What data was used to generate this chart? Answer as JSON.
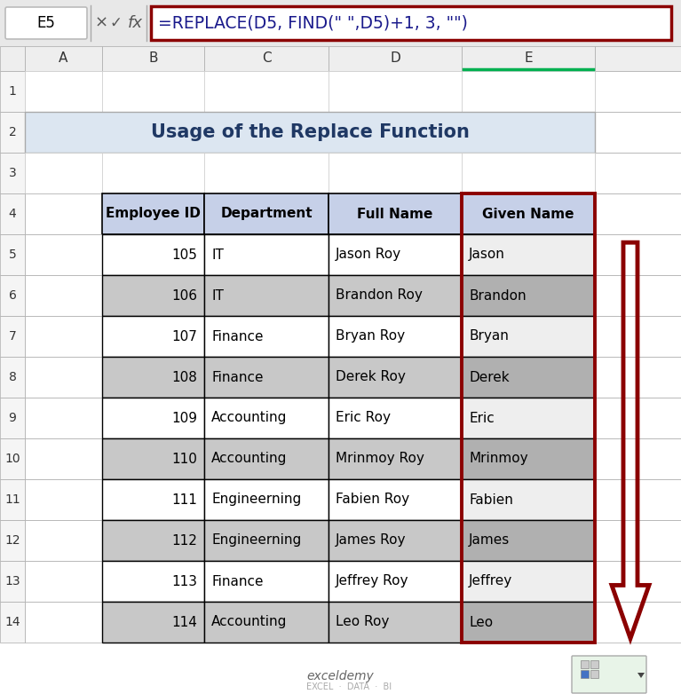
{
  "title": "Usage of the Replace Function",
  "formula_bar_text": "=REPLACE(D5, FIND(\" \",D5)+1, 3, \"\")",
  "cell_ref": "E5",
  "table_headers": [
    "Employee ID",
    "Department",
    "Full Name",
    "Given Name"
  ],
  "table_data": [
    [
      "105",
      "IT",
      "Jason Roy",
      "Jason"
    ],
    [
      "106",
      "IT",
      "Brandon Roy",
      "Brandon"
    ],
    [
      "107",
      "Finance",
      "Bryan Roy",
      "Bryan"
    ],
    [
      "108",
      "Finance",
      "Derek Roy",
      "Derek"
    ],
    [
      "109",
      "Accounting",
      "Eric Roy",
      "Eric"
    ],
    [
      "110",
      "Accounting",
      "Mrinmoy Roy",
      "Mrinmoy"
    ],
    [
      "111",
      "Engineerning",
      "Fabien Roy",
      "Fabien"
    ],
    [
      "112",
      "Engineerning",
      "James Roy",
      "James"
    ],
    [
      "113",
      "Finance",
      "Jeffrey Roy",
      "Jeffrey"
    ],
    [
      "114",
      "Accounting",
      "Leo Roy",
      "Leo"
    ]
  ],
  "header_bg": "#c6d0e8",
  "title_bg": "#dce6f1",
  "alt_row_bg": "#c8c8c8",
  "white_row_bg": "#ffffff",
  "given_name_alt_bg": "#b0b0b0",
  "given_name_white_bg": "#eeeeee",
  "dark_red": "#8B0000",
  "col_header_bg": "#eeeeee",
  "row_num_bg": "#f5f5f5",
  "formula_bg": "#ffffff",
  "fig_bg": "#ffffff",
  "row_nums": [
    "1",
    "2",
    "3",
    "4",
    "5",
    "6",
    "7",
    "8",
    "9",
    "10",
    "11",
    "12",
    "13",
    "14"
  ],
  "col_labels": [
    "A",
    "B",
    "C",
    "D",
    "E"
  ],
  "watermark1": "exceldemy",
  "watermark2": "EXCEL  ·  DATA  ·  BI"
}
